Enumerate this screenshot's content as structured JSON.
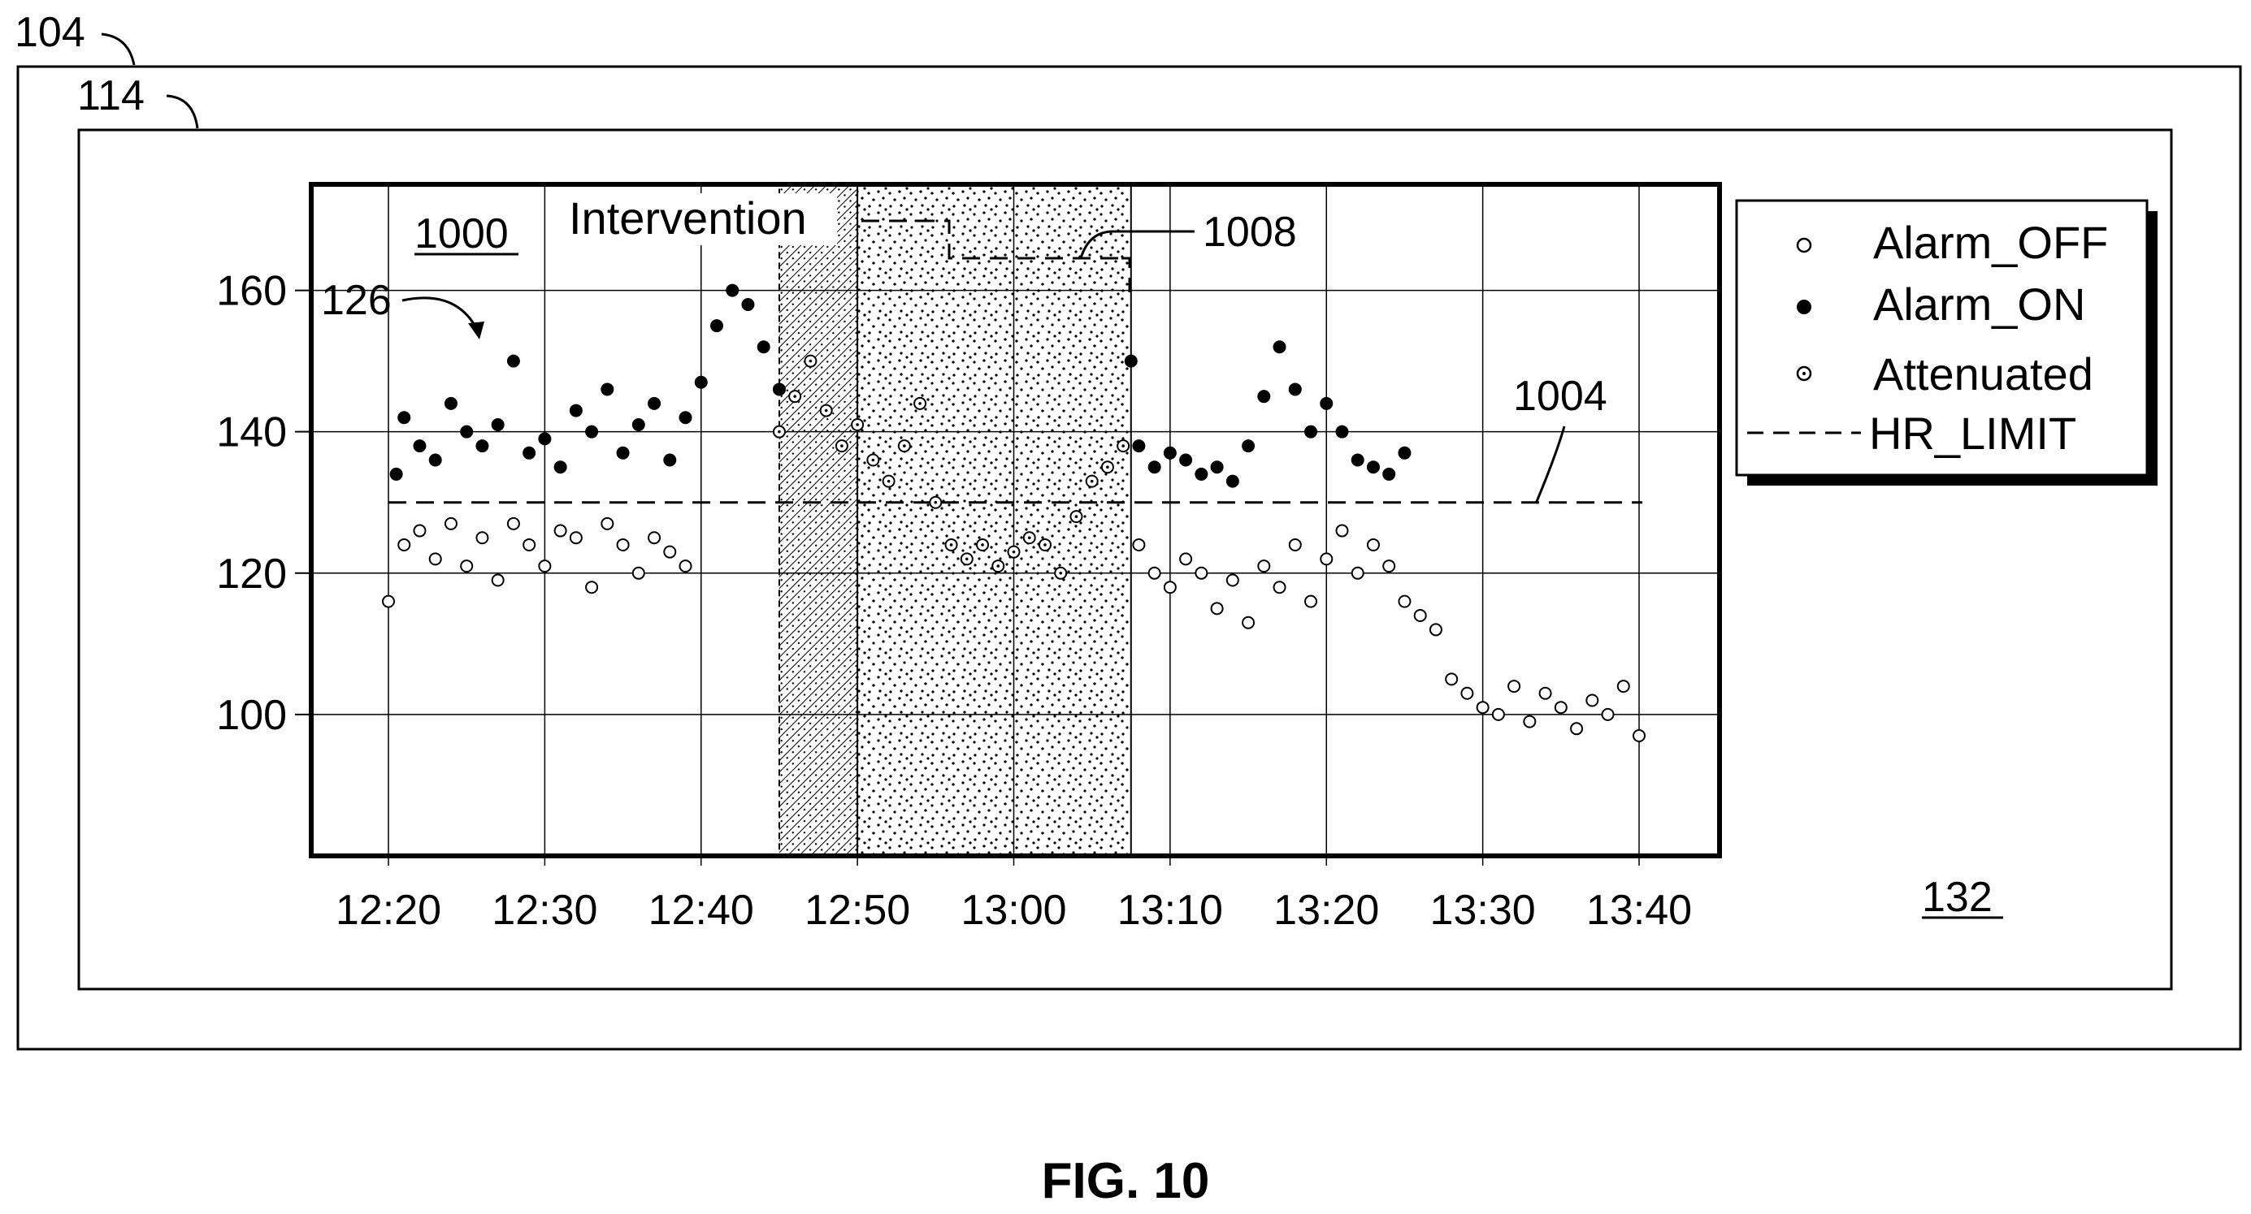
{
  "refs": {
    "device": "104",
    "display": "114",
    "graph": "1000",
    "data_ref": "126",
    "intervention_ref": "1008",
    "limit_ref": "1004",
    "panel": "132"
  },
  "caption": "FIG. 10",
  "chart_data": {
    "type": "scatter",
    "ylim": [
      80,
      175
    ],
    "yticks": [
      100,
      120,
      140,
      160
    ],
    "xlim_minutes": [
      -10,
      80
    ],
    "xticks": [
      {
        "label": "12:20",
        "min": 0
      },
      {
        "label": "12:30",
        "min": 10
      },
      {
        "label": "12:40",
        "min": 20
      },
      {
        "label": "12:50",
        "min": 30
      },
      {
        "label": "13:00",
        "min": 40
      },
      {
        "label": "13:10",
        "min": 50
      },
      {
        "label": "13:20",
        "min": 60
      },
      {
        "label": "13:30",
        "min": 70
      },
      {
        "label": "13:40",
        "min": 80
      }
    ],
    "hr_limit": 130,
    "intervention": {
      "label": "Intervention",
      "hatched_start": "12:45",
      "stippled_start": "12:50",
      "end": "13:07.5"
    },
    "legend": {
      "placement": "outside-right",
      "entries": [
        {
          "label": "Alarm_OFF",
          "marker": "open-circle"
        },
        {
          "label": "Alarm_ON",
          "marker": "filled-circle"
        },
        {
          "label": "Attenuated",
          "marker": "dotted-circle"
        },
        {
          "label": "HR_LIMIT",
          "marker": "dashed-line"
        }
      ]
    },
    "series": [
      {
        "name": "Alarm_ON",
        "points": [
          [
            "12:20.5",
            134
          ],
          [
            "12:21",
            142
          ],
          [
            "12:22",
            138
          ],
          [
            "12:23",
            136
          ],
          [
            "12:24",
            144
          ],
          [
            "12:25",
            140
          ],
          [
            "12:26",
            138
          ],
          [
            "12:27",
            141
          ],
          [
            "12:28",
            150
          ],
          [
            "12:29",
            137
          ],
          [
            "12:30",
            139
          ],
          [
            "12:31",
            135
          ],
          [
            "12:32",
            143
          ],
          [
            "12:33",
            140
          ],
          [
            "12:34",
            146
          ],
          [
            "12:35",
            137
          ],
          [
            "12:36",
            141
          ],
          [
            "12:37",
            144
          ],
          [
            "12:38",
            136
          ],
          [
            "12:39",
            142
          ],
          [
            "12:40",
            147
          ],
          [
            "12:41",
            155
          ],
          [
            "12:42",
            160
          ],
          [
            "12:43",
            158
          ],
          [
            "12:44",
            152
          ],
          [
            "12:45",
            146
          ],
          [
            "13:07.5",
            150
          ],
          [
            "13:08",
            138
          ],
          [
            "13:09",
            135
          ],
          [
            "13:10",
            137
          ],
          [
            "13:11",
            136
          ],
          [
            "13:12",
            134
          ],
          [
            "13:13",
            135
          ],
          [
            "13:14",
            133
          ],
          [
            "13:15",
            138
          ],
          [
            "13:16",
            145
          ],
          [
            "13:17",
            152
          ],
          [
            "13:18",
            146
          ],
          [
            "13:19",
            140
          ],
          [
            "13:20",
            144
          ],
          [
            "13:21",
            140
          ],
          [
            "13:22",
            136
          ],
          [
            "13:23",
            135
          ],
          [
            "13:24",
            134
          ],
          [
            "13:25",
            137
          ]
        ]
      },
      {
        "name": "Alarm_OFF",
        "points": [
          [
            "12:20",
            116
          ],
          [
            "12:21",
            124
          ],
          [
            "12:22",
            126
          ],
          [
            "12:23",
            122
          ],
          [
            "12:24",
            127
          ],
          [
            "12:25",
            121
          ],
          [
            "12:26",
            125
          ],
          [
            "12:27",
            119
          ],
          [
            "12:28",
            127
          ],
          [
            "12:29",
            124
          ],
          [
            "12:30",
            121
          ],
          [
            "12:31",
            126
          ],
          [
            "12:32",
            125
          ],
          [
            "12:33",
            118
          ],
          [
            "12:34",
            127
          ],
          [
            "12:35",
            124
          ],
          [
            "12:36",
            120
          ],
          [
            "12:37",
            125
          ],
          [
            "12:38",
            123
          ],
          [
            "12:39",
            121
          ],
          [
            "13:08",
            124
          ],
          [
            "13:09",
            120
          ],
          [
            "13:10",
            118
          ],
          [
            "13:11",
            122
          ],
          [
            "13:12",
            120
          ],
          [
            "13:13",
            115
          ],
          [
            "13:14",
            119
          ],
          [
            "13:15",
            113
          ],
          [
            "13:16",
            121
          ],
          [
            "13:17",
            118
          ],
          [
            "13:18",
            124
          ],
          [
            "13:19",
            116
          ],
          [
            "13:20",
            122
          ],
          [
            "13:21",
            126
          ],
          [
            "13:22",
            120
          ],
          [
            "13:23",
            124
          ],
          [
            "13:24",
            121
          ],
          [
            "13:25",
            116
          ],
          [
            "13:26",
            114
          ],
          [
            "13:27",
            112
          ],
          [
            "13:28",
            105
          ],
          [
            "13:29",
            103
          ],
          [
            "13:30",
            101
          ],
          [
            "13:31",
            100
          ],
          [
            "13:32",
            104
          ],
          [
            "13:33",
            99
          ],
          [
            "13:34",
            103
          ],
          [
            "13:35",
            101
          ],
          [
            "13:36",
            98
          ],
          [
            "13:37",
            102
          ],
          [
            "13:38",
            100
          ],
          [
            "13:39",
            104
          ],
          [
            "13:40",
            97
          ]
        ]
      },
      {
        "name": "Attenuated",
        "points": [
          [
            "12:45",
            140
          ],
          [
            "12:46",
            145
          ],
          [
            "12:47",
            150
          ],
          [
            "12:48",
            143
          ],
          [
            "12:49",
            138
          ],
          [
            "12:50",
            141
          ],
          [
            "12:51",
            136
          ],
          [
            "12:52",
            133
          ],
          [
            "12:53",
            138
          ],
          [
            "12:54",
            144
          ],
          [
            "12:55",
            130
          ],
          [
            "12:56",
            124
          ],
          [
            "12:57",
            122
          ],
          [
            "12:58",
            124
          ],
          [
            "12:59",
            121
          ],
          [
            "13:00",
            123
          ],
          [
            "13:01",
            125
          ],
          [
            "13:02",
            124
          ],
          [
            "13:03",
            120
          ],
          [
            "13:04",
            128
          ],
          [
            "13:05",
            133
          ],
          [
            "13:06",
            135
          ],
          [
            "13:07",
            138
          ]
        ]
      }
    ]
  }
}
